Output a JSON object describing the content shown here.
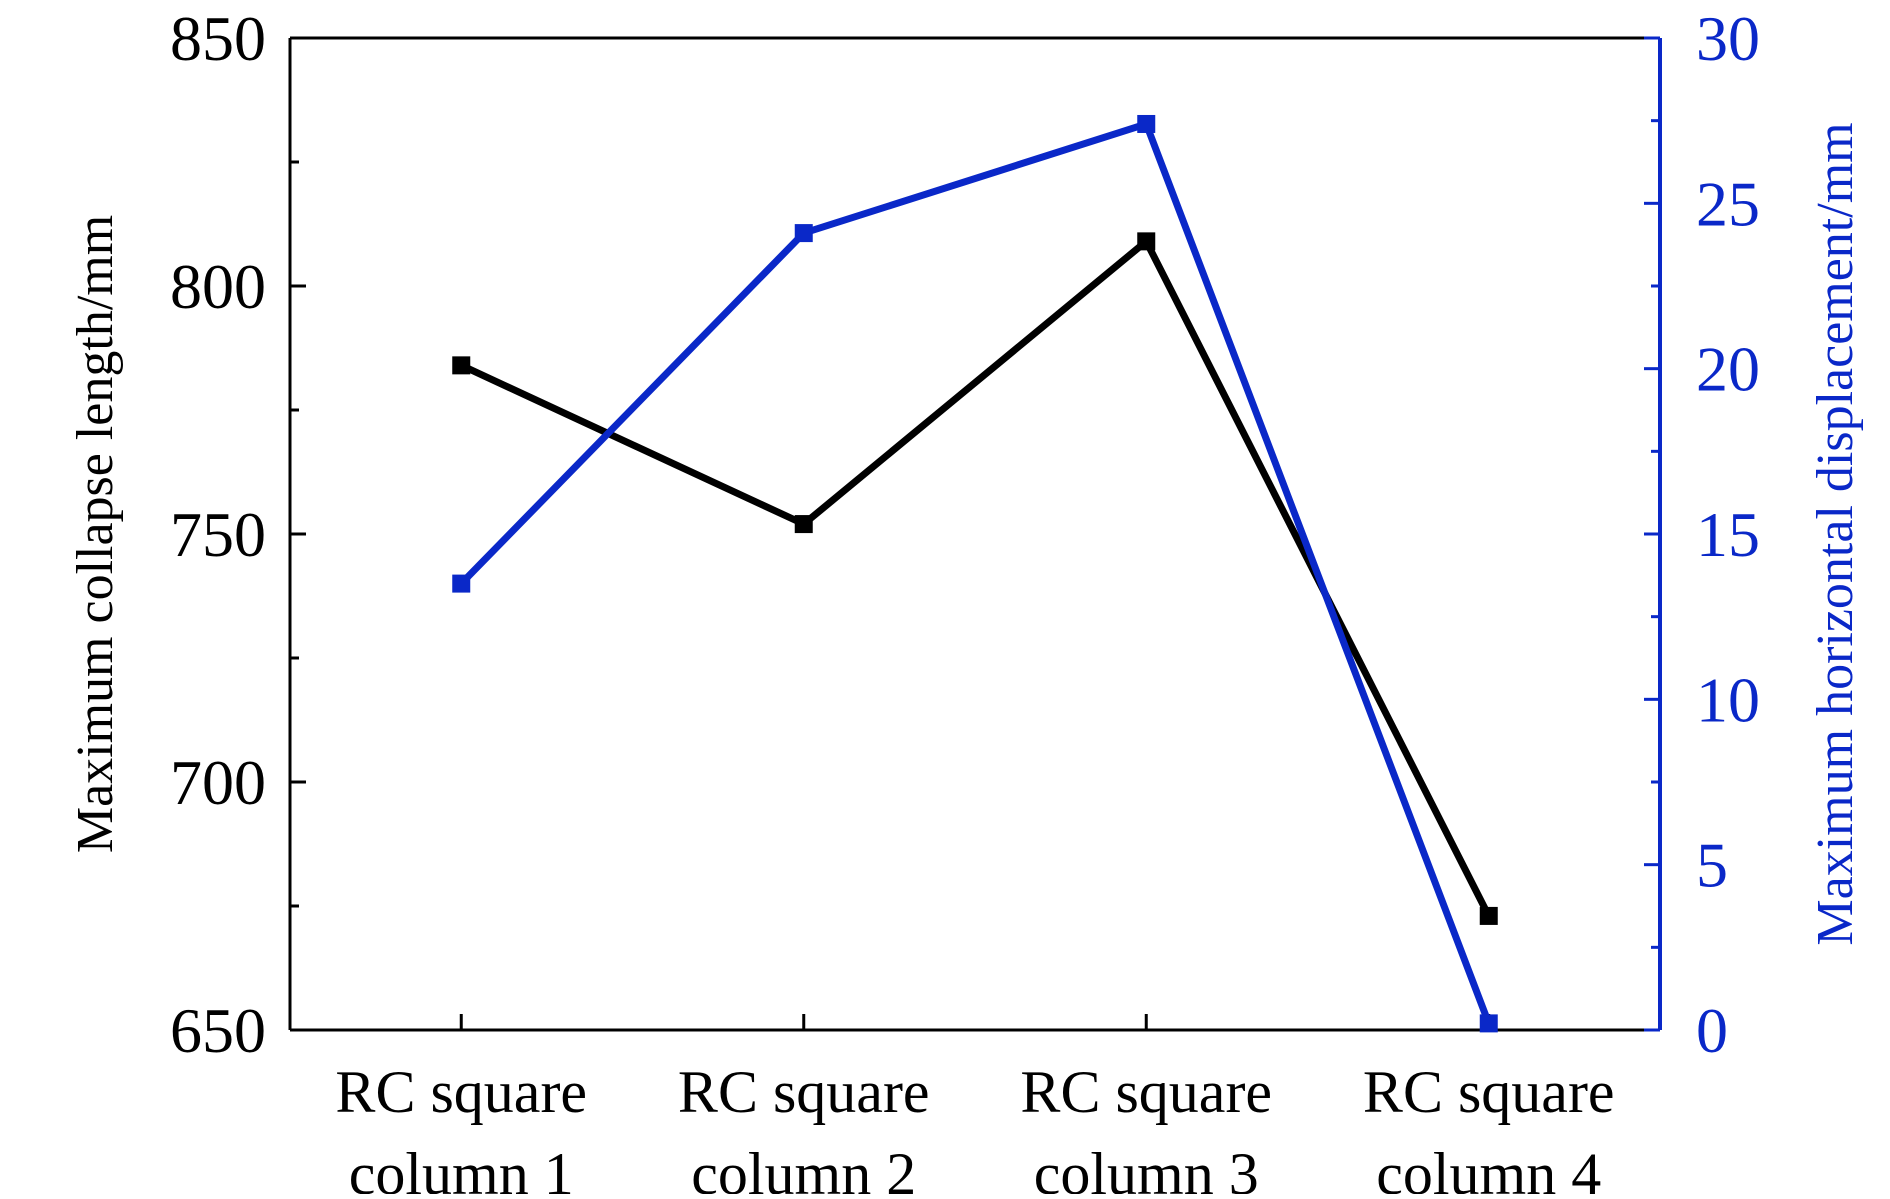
{
  "chart_data": {
    "type": "line",
    "categories": [
      [
        "RC square",
        "column 1"
      ],
      [
        "RC square",
        "column 2"
      ],
      [
        "RC square",
        "column 3"
      ],
      [
        "RC square",
        "column 4"
      ]
    ],
    "y_left": {
      "label": "Maximum collapse length/mm",
      "lim": [
        650,
        850
      ],
      "ticks": [
        650,
        700,
        750,
        800,
        850
      ],
      "minor_ticks": [
        675,
        725,
        775,
        825
      ],
      "color": "#000000"
    },
    "y_right": {
      "label": "Maximum horizontal displacement/mm",
      "lim": [
        0,
        30
      ],
      "ticks": [
        0,
        5,
        10,
        15,
        20,
        25,
        30
      ],
      "minor_ticks": [
        2.5,
        7.5,
        12.5,
        17.5,
        22.5,
        27.5
      ],
      "color": "#0a28c8"
    },
    "series": [
      {
        "axis": "left",
        "color": "#000000",
        "values": [
          784,
          752,
          809,
          673
        ]
      },
      {
        "axis": "right",
        "color": "#0a28c8",
        "values": [
          13.5,
          24.1,
          27.4,
          0.2
        ]
      }
    ],
    "grid": false,
    "legend": "none"
  }
}
